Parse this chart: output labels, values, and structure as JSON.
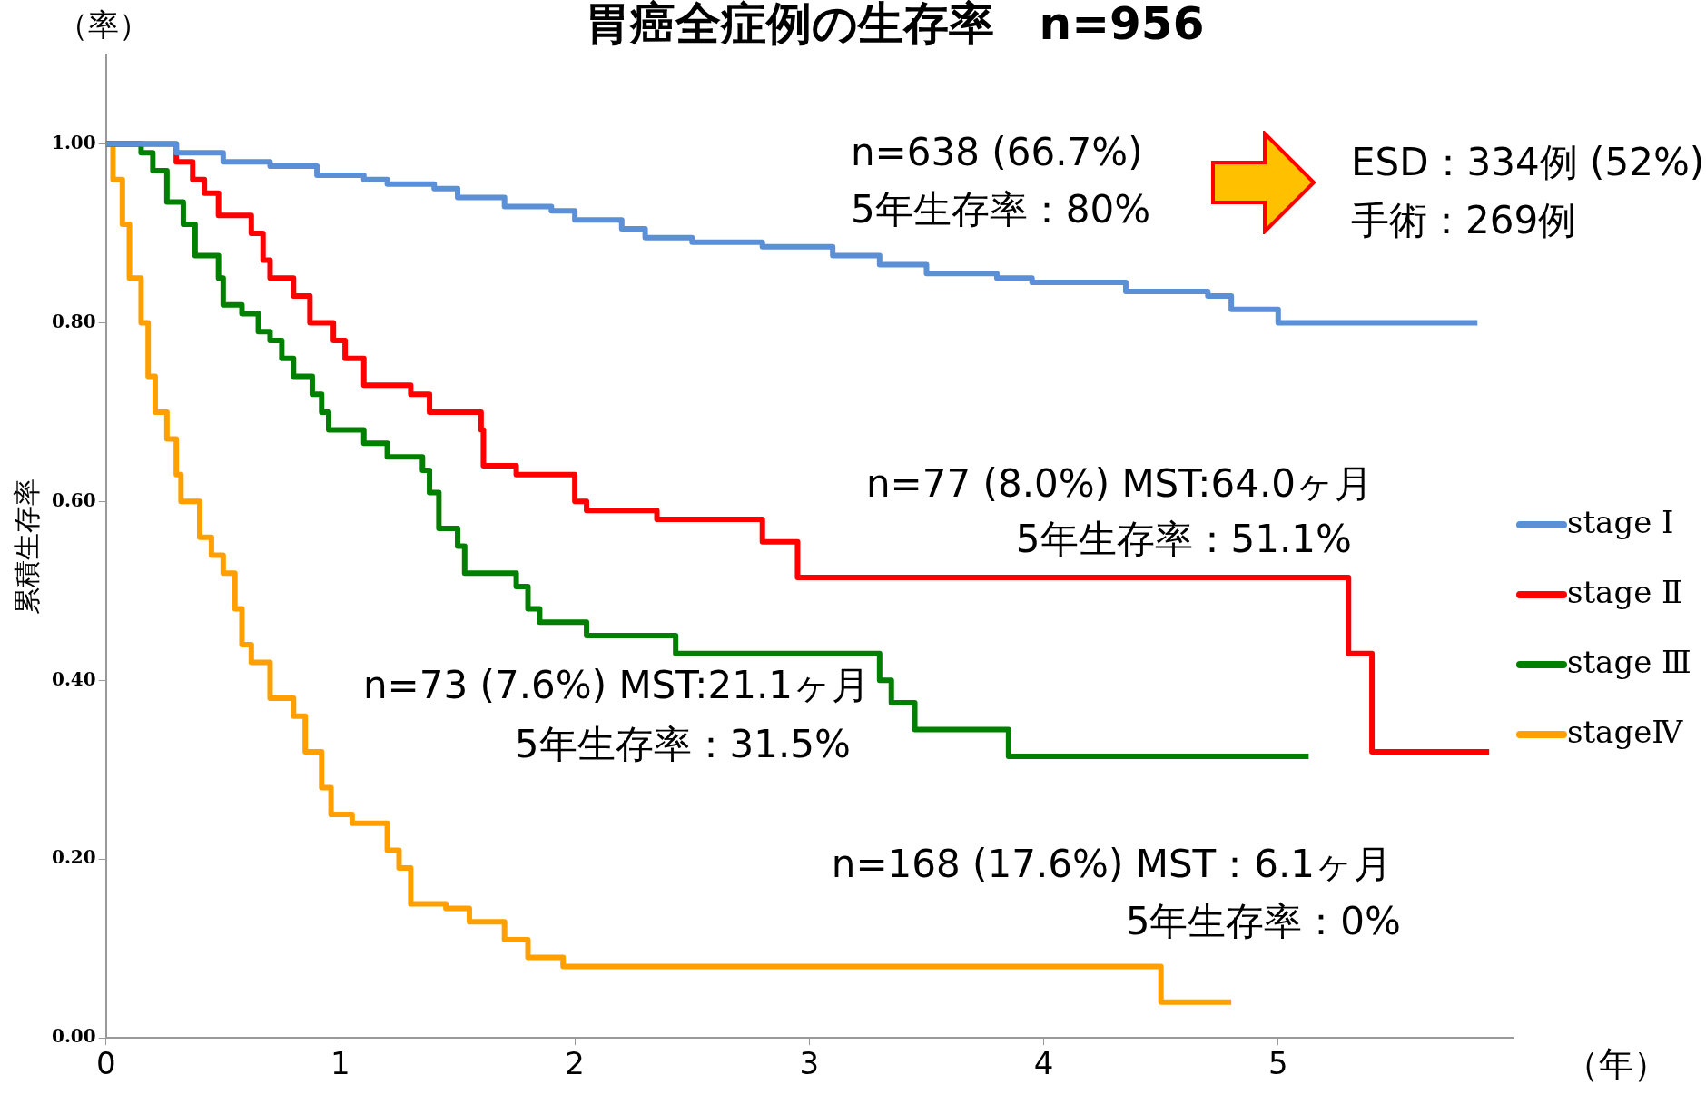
{
  "chart_data": {
    "type": "step",
    "title": "胃癌全症例の生存率　n=956",
    "xlabel": "（年）",
    "ylabel": "累積生存率",
    "xlim": [
      0,
      6
    ],
    "xticks": [
      0,
      1,
      2,
      3,
      4,
      5
    ],
    "ylim": [
      0,
      1.1
    ],
    "yticks": [
      {
        "value": 0,
        "label": "0.00"
      },
      {
        "value": 0.2,
        "label": "0.20"
      },
      {
        "value": 0.4,
        "label": "0.40"
      },
      {
        "value": 0.6,
        "label": "0.60"
      },
      {
        "value": 0.8,
        "label": "0.80"
      },
      {
        "value": 1,
        "label": "1.00"
      }
    ],
    "grid": false,
    "legend": "right",
    "marker": "none",
    "line_style": "solid",
    "series": [
      {
        "name": "stage Ⅰ",
        "color": "#5b8fd6",
        "x": [
          0,
          0.3,
          0.5,
          0.7,
          0.9,
          1.1,
          1.2,
          1.4,
          1.5,
          1.7,
          1.9,
          2.0,
          2.2,
          2.3,
          2.5,
          2.8,
          3.1,
          3.3,
          3.5,
          3.8,
          3.95,
          4.35,
          4.7,
          4.8,
          5.0,
          5.85
        ],
        "values": [
          1.0,
          0.99,
          0.98,
          0.975,
          0.965,
          0.96,
          0.955,
          0.95,
          0.94,
          0.93,
          0.925,
          0.915,
          0.905,
          0.895,
          0.89,
          0.885,
          0.875,
          0.865,
          0.855,
          0.85,
          0.845,
          0.835,
          0.83,
          0.815,
          0.8,
          0.8
        ]
      },
      {
        "name": "stage Ⅱ",
        "color": "#ff0000",
        "x": [
          0,
          0.3,
          0.37,
          0.42,
          0.48,
          0.62,
          0.67,
          0.7,
          0.8,
          0.87,
          0.97,
          1.02,
          1.1,
          1.3,
          1.38,
          1.6,
          1.61,
          1.75,
          2.0,
          2.05,
          2.35,
          2.8,
          2.95,
          5.3,
          5.35,
          5.4,
          5.9
        ],
        "values": [
          1.0,
          0.98,
          0.96,
          0.945,
          0.92,
          0.9,
          0.87,
          0.85,
          0.83,
          0.8,
          0.78,
          0.76,
          0.73,
          0.72,
          0.7,
          0.68,
          0.64,
          0.63,
          0.6,
          0.59,
          0.58,
          0.555,
          0.515,
          0.43,
          0.43,
          0.32,
          0.32
        ]
      },
      {
        "name": "stage Ⅲ",
        "color": "#008000",
        "x": [
          0,
          0.15,
          0.2,
          0.26,
          0.33,
          0.38,
          0.48,
          0.5,
          0.58,
          0.65,
          0.7,
          0.75,
          0.8,
          0.88,
          0.92,
          0.95,
          1.1,
          1.2,
          1.35,
          1.38,
          1.42,
          1.5,
          1.53,
          1.75,
          1.8,
          1.85,
          2.05,
          2.43,
          3.3,
          3.35,
          3.45,
          3.85,
          5.13
        ],
        "values": [
          1.0,
          0.99,
          0.97,
          0.935,
          0.91,
          0.875,
          0.85,
          0.82,
          0.81,
          0.79,
          0.78,
          0.76,
          0.74,
          0.72,
          0.7,
          0.68,
          0.665,
          0.65,
          0.635,
          0.61,
          0.57,
          0.55,
          0.52,
          0.505,
          0.48,
          0.465,
          0.45,
          0.43,
          0.4,
          0.375,
          0.345,
          0.315,
          0.315
        ]
      },
      {
        "name": "stageⅣ",
        "color": "#ffa000",
        "x": [
          0,
          0.03,
          0.07,
          0.1,
          0.15,
          0.18,
          0.21,
          0.26,
          0.3,
          0.32,
          0.4,
          0.45,
          0.5,
          0.55,
          0.58,
          0.62,
          0.7,
          0.8,
          0.85,
          0.92,
          0.96,
          1.05,
          1.2,
          1.25,
          1.3,
          1.45,
          1.55,
          1.7,
          1.8,
          1.95,
          4.5,
          4.8
        ],
        "values": [
          1.0,
          0.96,
          0.91,
          0.85,
          0.8,
          0.74,
          0.7,
          0.67,
          0.63,
          0.6,
          0.56,
          0.54,
          0.52,
          0.48,
          0.44,
          0.42,
          0.38,
          0.36,
          0.32,
          0.28,
          0.25,
          0.24,
          0.21,
          0.19,
          0.15,
          0.145,
          0.13,
          0.11,
          0.09,
          0.08,
          0.04,
          0.04
        ]
      }
    ],
    "annotations": [
      "（率）",
      "n=638 (66.7%)",
      "5年生存率：80%",
      "ESD：334例 (52%)",
      "手術：269例",
      "n=77 (8.0%) MST:64.0ヶ月",
      "5年生存率：51.1%",
      "n=73 (7.6%) MST:21.1ヶ月",
      "5年生存率：31.5%",
      "n=168 (17.6%) MST：6.1ヶ月",
      "5年生存率：0%"
    ]
  }
}
